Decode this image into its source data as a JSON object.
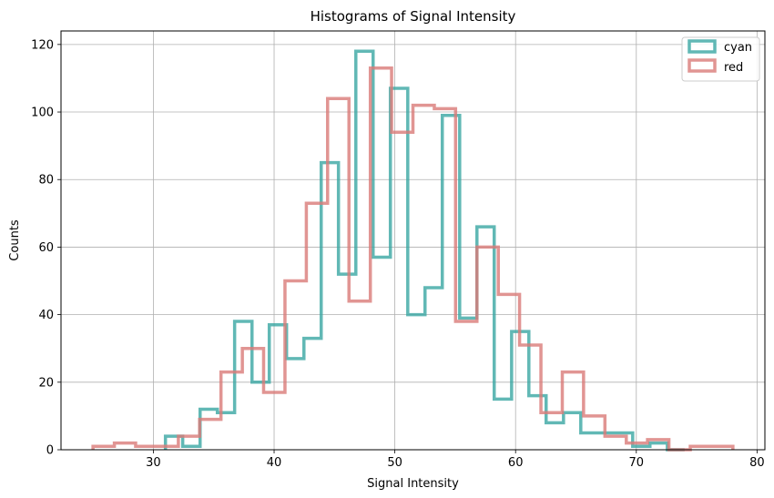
{
  "chart_data": {
    "type": "step-histogram",
    "title": "Histograms of Signal Intensity",
    "xlabel": "Signal Intensity",
    "ylabel": "Counts",
    "xlim": [
      22.35,
      80.65
    ],
    "ylim": [
      0,
      124
    ],
    "xticks": [
      30,
      40,
      50,
      60,
      70,
      80
    ],
    "yticks": [
      0,
      20,
      40,
      60,
      80,
      100,
      120
    ],
    "grid": true,
    "legend_position": "top-right",
    "series": [
      {
        "name": "cyan",
        "color": "#3aa6a3",
        "bin_edges": [
          31.0,
          32.43,
          33.87,
          35.3,
          36.73,
          38.17,
          39.6,
          41.03,
          42.47,
          43.9,
          45.33,
          46.77,
          48.2,
          49.63,
          51.07,
          52.5,
          53.93,
          55.37,
          56.8,
          58.23,
          59.67,
          61.1,
          62.53,
          63.97,
          65.4,
          66.83,
          68.27,
          69.7,
          71.13,
          72.57,
          74.0
        ],
        "counts": [
          4,
          1,
          12,
          11,
          38,
          20,
          37,
          27,
          33,
          85,
          52,
          118,
          57,
          107,
          40,
          48,
          99,
          39,
          66,
          15,
          35,
          16,
          8,
          11,
          5,
          5,
          5,
          1,
          2,
          0
        ]
      },
      {
        "name": "red",
        "color": "#d97a78",
        "bin_edges": [
          25.0,
          26.77,
          28.53,
          30.3,
          32.07,
          33.83,
          35.6,
          37.37,
          39.13,
          40.9,
          42.67,
          44.43,
          46.2,
          47.97,
          49.73,
          51.5,
          53.27,
          55.03,
          56.8,
          58.57,
          60.33,
          62.1,
          63.87,
          65.63,
          67.4,
          69.17,
          70.93,
          72.7,
          74.47,
          76.23,
          78.0
        ],
        "counts": [
          1,
          2,
          1,
          1,
          4,
          9,
          23,
          30,
          17,
          50,
          73,
          104,
          44,
          113,
          94,
          102,
          101,
          38,
          60,
          46,
          31,
          11,
          23,
          10,
          4,
          2,
          3,
          0,
          1,
          1
        ]
      }
    ]
  }
}
